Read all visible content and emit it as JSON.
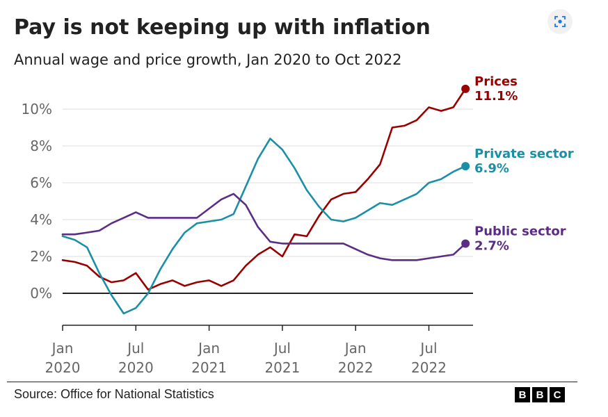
{
  "chart_data": {
    "type": "line",
    "title": "Pay is not keeping up with inflation",
    "subtitle": "Annual wage and price growth, Jan 2020 to Oct 2022",
    "xlabel": "",
    "ylabel": "",
    "x_start": "2020-01",
    "x_end": "2022-10",
    "ylim": [
      -2,
      11
    ],
    "y_ticks": [
      {
        "value": 0,
        "label": "0%"
      },
      {
        "value": 2,
        "label": "2%"
      },
      {
        "value": 4,
        "label": "4%"
      },
      {
        "value": 6,
        "label": "6%"
      },
      {
        "value": 8,
        "label": "8%"
      },
      {
        "value": 10,
        "label": "10%"
      }
    ],
    "x_ticks": [
      {
        "x": "2020-01",
        "line1": "Jan",
        "line2": "2020"
      },
      {
        "x": "2020-07",
        "line1": "Jul",
        "line2": "2020"
      },
      {
        "x": "2021-01",
        "line1": "Jan",
        "line2": "2021"
      },
      {
        "x": "2021-07",
        "line1": "Jul",
        "line2": "2021"
      },
      {
        "x": "2022-01",
        "line1": "Jan",
        "line2": "2022"
      },
      {
        "x": "2022-07",
        "line1": "Jul",
        "line2": "2022"
      }
    ],
    "x": [
      "2020-01",
      "2020-02",
      "2020-03",
      "2020-04",
      "2020-05",
      "2020-06",
      "2020-07",
      "2020-08",
      "2020-09",
      "2020-10",
      "2020-11",
      "2020-12",
      "2021-01",
      "2021-02",
      "2021-03",
      "2021-04",
      "2021-05",
      "2021-06",
      "2021-07",
      "2021-08",
      "2021-09",
      "2021-10",
      "2021-11",
      "2021-12",
      "2022-01",
      "2022-02",
      "2022-03",
      "2022-04",
      "2022-05",
      "2022-06",
      "2022-07",
      "2022-08",
      "2022-09",
      "2022-10"
    ],
    "grid": "horizontal",
    "legend": "direct labels at line ends, right",
    "series": [
      {
        "name": "Prices",
        "end_label": "11.1%",
        "color": "#990000",
        "values": [
          1.8,
          1.7,
          1.5,
          0.9,
          0.6,
          0.7,
          1.1,
          0.2,
          0.5,
          0.7,
          0.4,
          0.6,
          0.7,
          0.4,
          0.7,
          1.5,
          2.1,
          2.5,
          2.0,
          3.2,
          3.1,
          4.2,
          5.1,
          5.4,
          5.5,
          6.2,
          7.0,
          9.0,
          9.1,
          9.4,
          10.1,
          9.9,
          10.1,
          11.1
        ]
      },
      {
        "name": "Private sector",
        "end_label": "6.9%",
        "color": "#1a8fa6",
        "values": [
          3.1,
          2.9,
          2.5,
          1.1,
          -0.1,
          -1.1,
          -0.8,
          0.0,
          1.3,
          2.4,
          3.3,
          3.8,
          3.9,
          4.0,
          4.3,
          5.8,
          7.3,
          8.4,
          7.8,
          6.8,
          5.6,
          4.7,
          4.0,
          3.9,
          4.1,
          4.5,
          4.9,
          4.8,
          5.1,
          5.4,
          6.0,
          6.2,
          6.6,
          6.9
        ]
      },
      {
        "name": "Public sector",
        "end_label": "2.7%",
        "color": "#5b2d84",
        "values": [
          3.2,
          3.2,
          3.3,
          3.4,
          3.8,
          4.1,
          4.4,
          4.1,
          4.1,
          4.1,
          4.1,
          4.1,
          4.6,
          5.1,
          5.4,
          4.8,
          3.6,
          2.8,
          2.7,
          2.7,
          2.7,
          2.7,
          2.7,
          2.7,
          2.4,
          2.1,
          1.9,
          1.8,
          1.8,
          1.8,
          1.9,
          2.0,
          2.1,
          2.7
        ]
      }
    ]
  },
  "footer": {
    "source": "Source: Office for National Statistics",
    "logo_letters": [
      "B",
      "B",
      "C"
    ]
  },
  "icons": {
    "lens": "image-search-icon"
  }
}
